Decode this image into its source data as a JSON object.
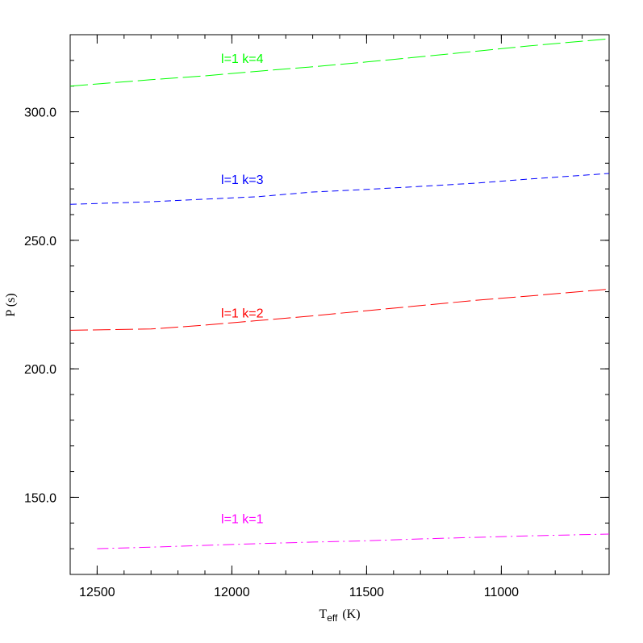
{
  "chart_data": {
    "type": "line",
    "xlabel_main": "T",
    "xlabel_sub": "eff",
    "xlabel_unit": "(K)",
    "ylabel": "P (s)",
    "xlim": [
      12600,
      10600
    ],
    "ylim": [
      120,
      330
    ],
    "x_ticks": [
      12500,
      12000,
      11500,
      11000
    ],
    "x_tick_labels": [
      "12500",
      "12000",
      "11500",
      "11000"
    ],
    "y_ticks": [
      150,
      200,
      250,
      300
    ],
    "y_tick_labels": [
      "150.0",
      "200.0",
      "250.0",
      "300.0"
    ],
    "x_minor_step": 100,
    "y_minor_step": 10,
    "grid": false,
    "series": [
      {
        "name": "l=1 k=1",
        "color": "#ff00ff",
        "dash": "dashdot",
        "label_x": 12040,
        "label_y": 140,
        "x": [
          12500,
          12300,
          12100,
          11900,
          11700,
          11500,
          11300,
          11100,
          10900,
          10600
        ],
        "y": [
          130.0,
          130.6,
          131.3,
          132.0,
          132.6,
          133.1,
          133.8,
          134.4,
          135.0,
          135.7
        ]
      },
      {
        "name": "l=1 k=2",
        "color": "#ff0000",
        "dash": "longdash",
        "label_x": 12040,
        "label_y": 220,
        "x": [
          12600,
          12300,
          12100,
          11900,
          11700,
          11500,
          11300,
          11100,
          10900,
          10600
        ],
        "y": [
          215.0,
          215.5,
          217.0,
          218.8,
          220.6,
          222.6,
          224.6,
          226.6,
          228.3,
          231.0
        ]
      },
      {
        "name": "l=1 k=3",
        "color": "#0000ff",
        "dash": "shortdash",
        "label_x": 12040,
        "label_y": 272,
        "x": [
          12600,
          12300,
          12100,
          11900,
          11700,
          11500,
          11300,
          11100,
          10900,
          10600
        ],
        "y": [
          264.0,
          265.0,
          266.0,
          267.0,
          268.8,
          269.8,
          271.0,
          272.2,
          273.8,
          276.0
        ]
      },
      {
        "name": "l=1 k=4",
        "color": "#00ff00",
        "dash": "longdash",
        "label_x": 12040,
        "label_y": 319,
        "x": [
          12600,
          12300,
          12100,
          11900,
          11700,
          11500,
          11300,
          11100,
          10900,
          10600
        ],
        "y": [
          310.0,
          312.5,
          314.0,
          315.8,
          317.5,
          319.4,
          321.4,
          323.5,
          325.6,
          328.4
        ]
      }
    ]
  }
}
